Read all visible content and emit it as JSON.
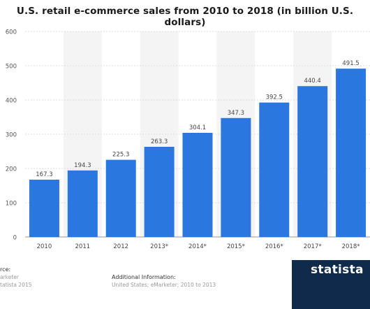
{
  "chart_data": {
    "type": "bar",
    "title": "U.S. retail e-commerce sales from 2010 to 2018 (in billion U.S. dollars)",
    "categories": [
      "2010",
      "2011",
      "2012",
      "2013*",
      "2014*",
      "2015*",
      "2016*",
      "2017*",
      "2018*"
    ],
    "values": [
      167.3,
      194.3,
      225.3,
      263.3,
      304.1,
      347.3,
      392.5,
      440.4,
      491.5
    ],
    "value_labels": [
      "167.3",
      "194.3",
      "225.3",
      "263.3",
      "304.1",
      "347.3",
      "392.5",
      "440.4",
      "491.5"
    ],
    "xlabel": "",
    "ylabel": "",
    "ylim": [
      0,
      600
    ],
    "yticks": [
      "0",
      "100",
      "200",
      "300",
      "400",
      "500",
      "600"
    ],
    "grid": true,
    "bar_color": "#2a77e0"
  },
  "footer": {
    "source_heading": "rce:",
    "source_line1": "arketer",
    "source_line2": "tatista 2015",
    "info_heading": "Additional Information:",
    "info_text": "United States; eMarketer; 2010 to 2013"
  },
  "brand": {
    "name": "statista",
    "bar_color": "#0f2a4a"
  }
}
